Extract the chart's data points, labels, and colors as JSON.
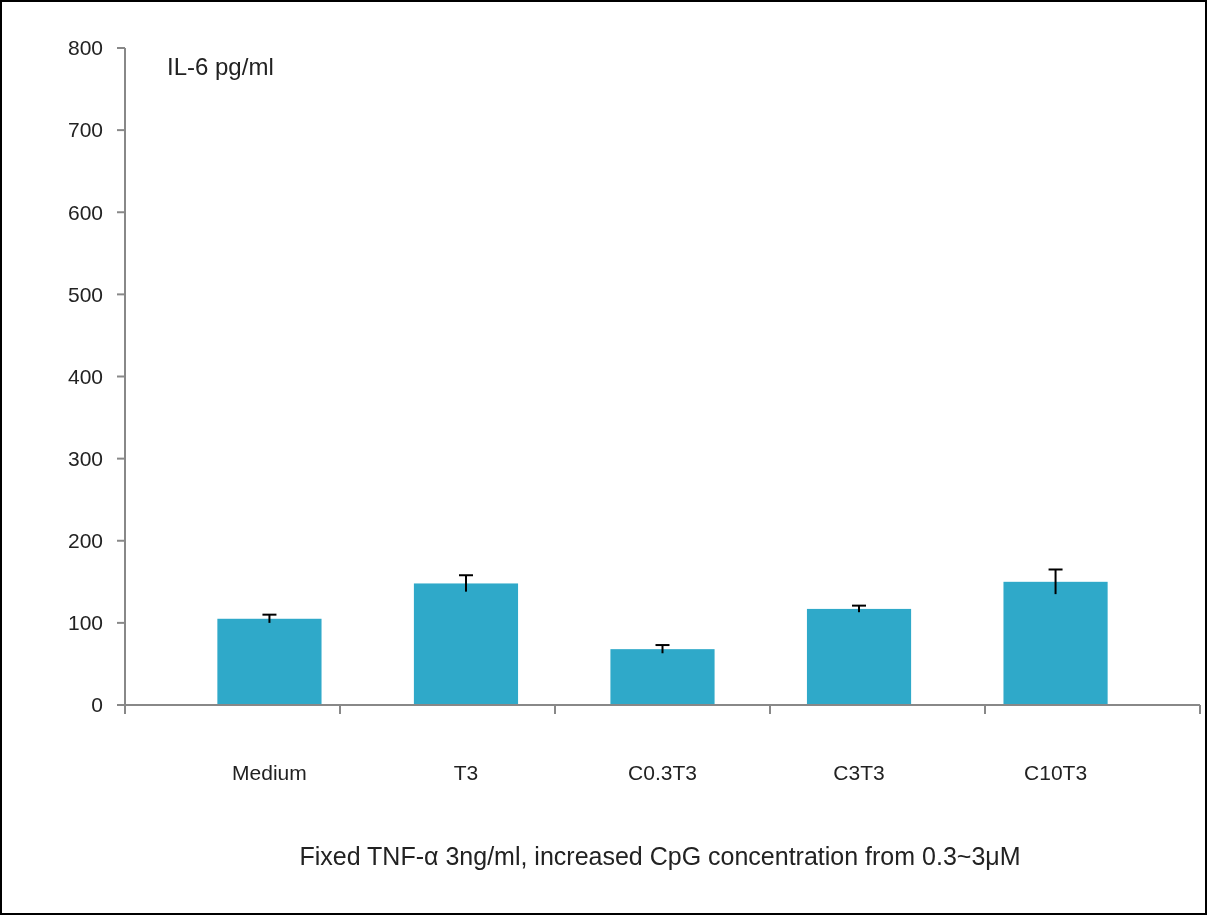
{
  "chart_data": {
    "type": "bar",
    "ylabel": "IL-6 pg/ml",
    "xlabel": "Fixed  TNF-α 3ng/ml,  increased CpG concentration from 0.3~3μM",
    "categories": [
      "Medium",
      "T3",
      "C0.3T3",
      "C3T3",
      "C10T3"
    ],
    "values": [
      105,
      148,
      68,
      117,
      150
    ],
    "errors": [
      5,
      10,
      5,
      4,
      15
    ],
    "color": "#2fa9c9",
    "ylim": [
      0,
      800
    ],
    "yticks": [
      0,
      100,
      200,
      300,
      400,
      500,
      600,
      700,
      800
    ],
    "grid": false
  }
}
